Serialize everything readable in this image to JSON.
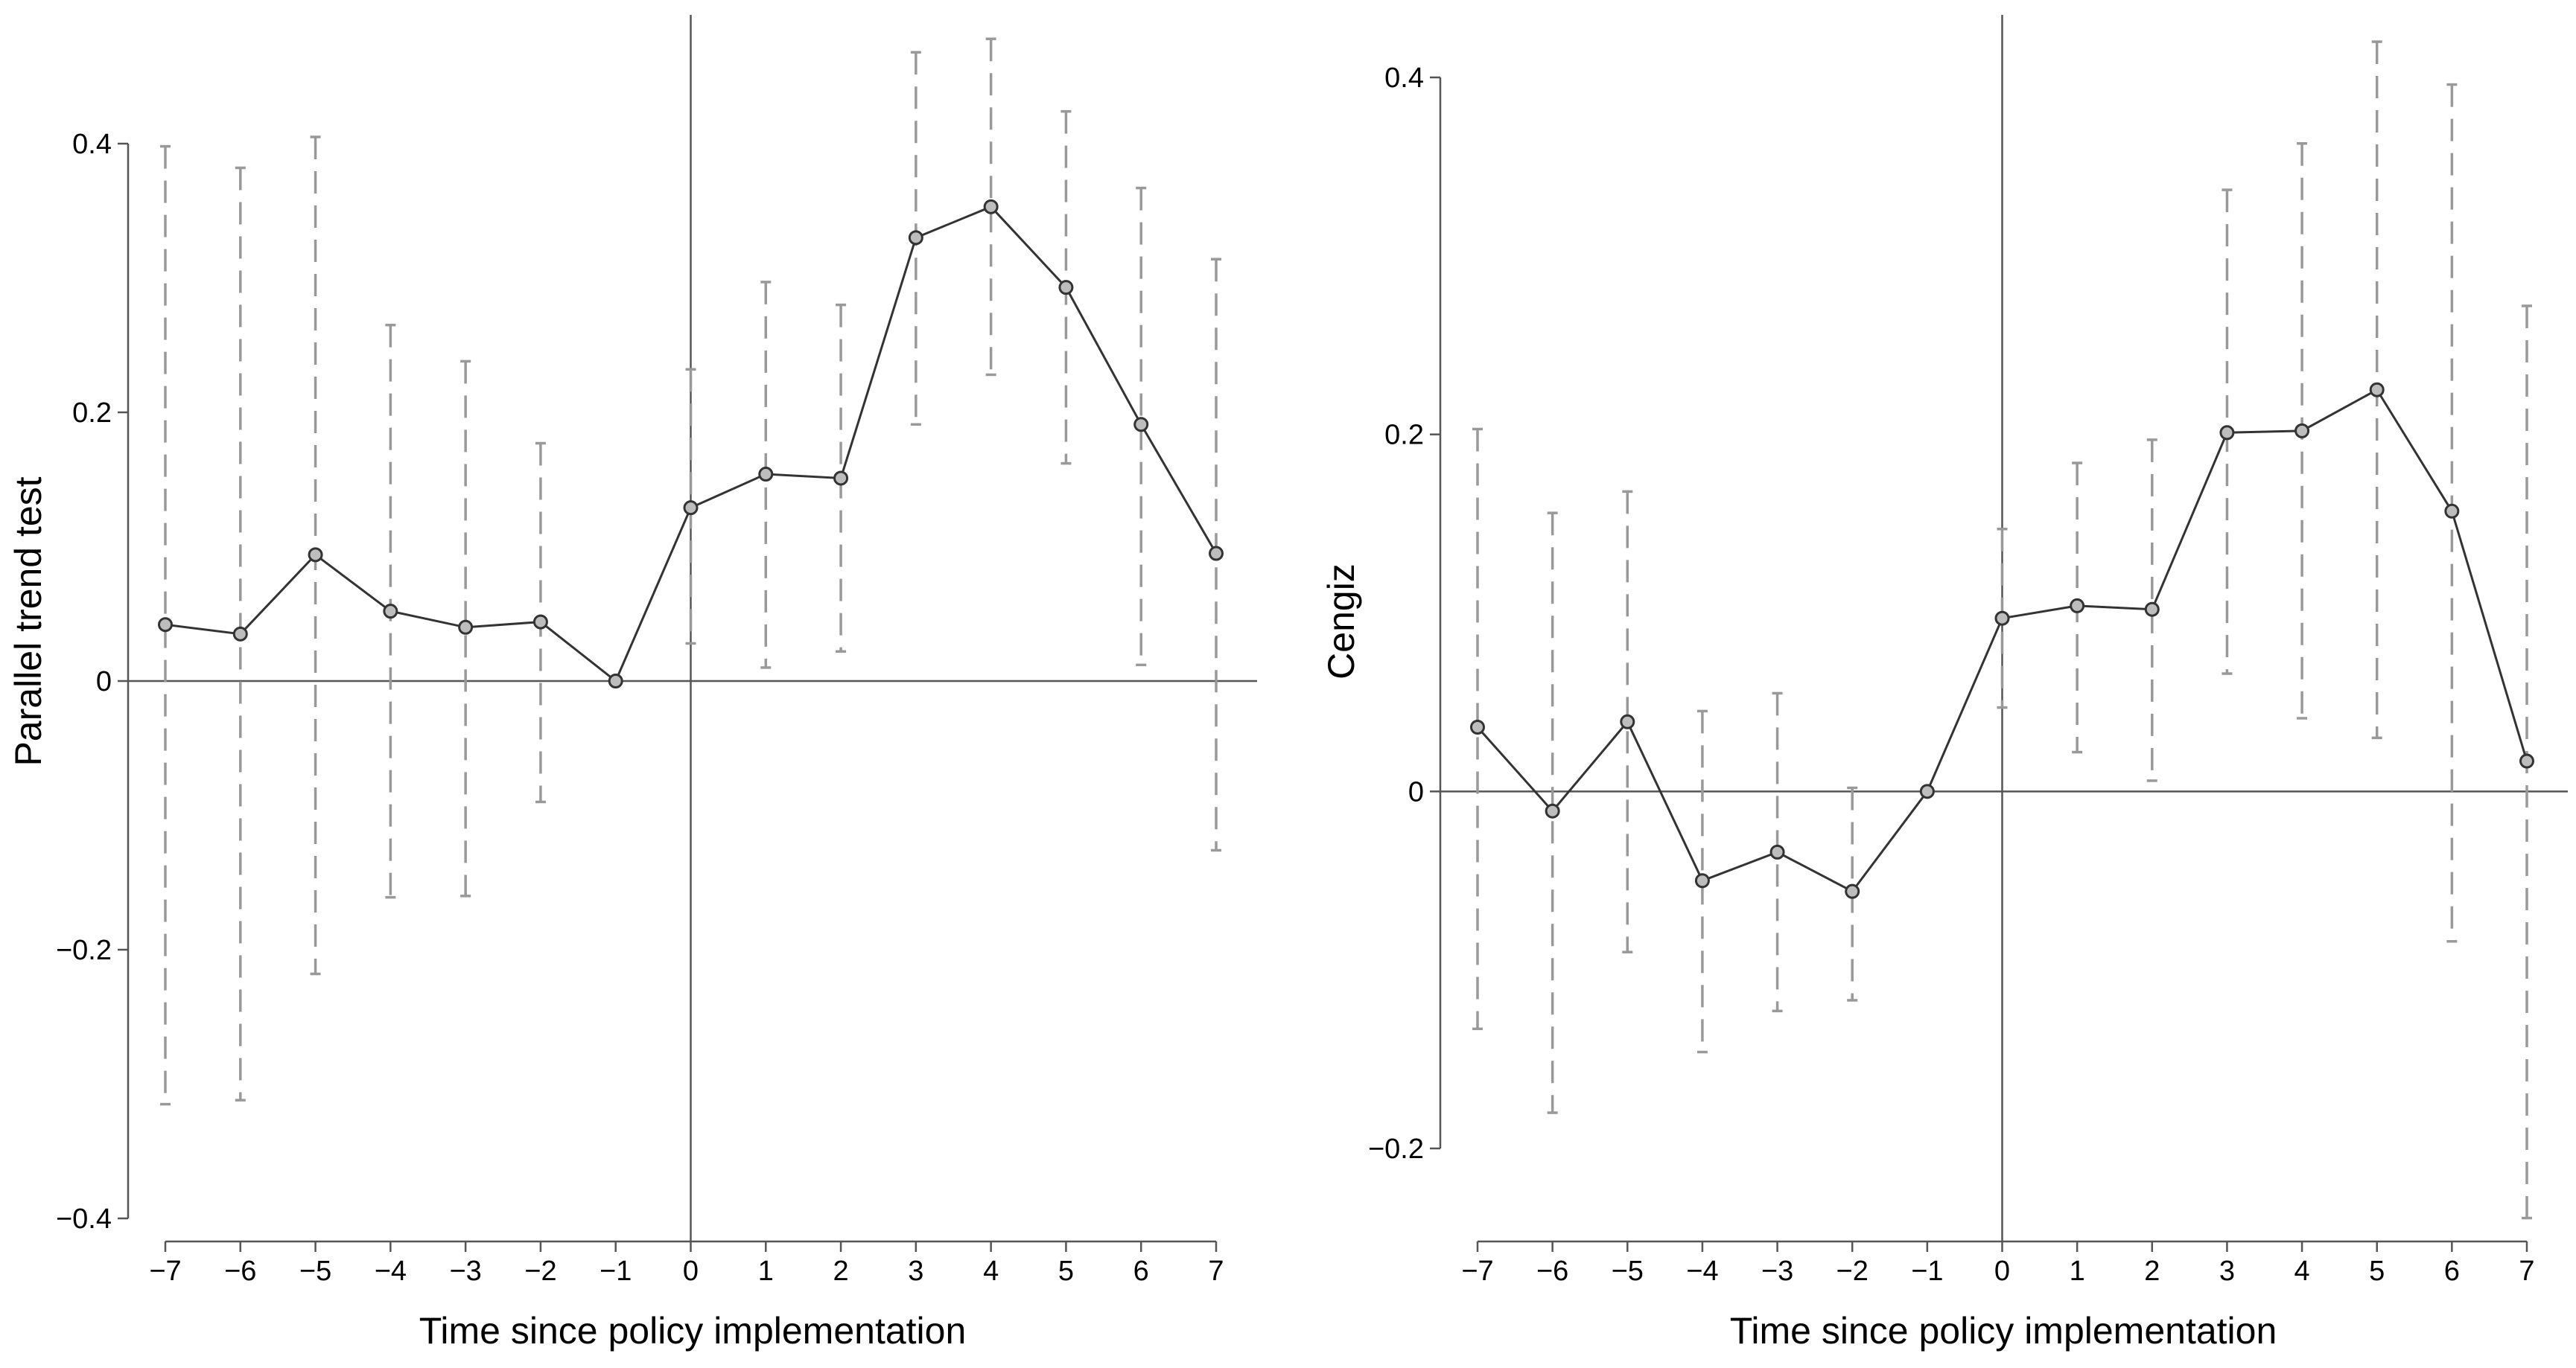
{
  "chart_data": [
    {
      "type": "line",
      "title": "",
      "xlabel": "Time since policy implementation",
      "ylabel": "Parallel trend test",
      "x": [
        -7,
        -6,
        -5,
        -4,
        -3,
        -2,
        -1,
        0,
        1,
        2,
        3,
        4,
        5,
        6,
        7
      ],
      "x_tick_labels": [
        "−7",
        "−6",
        "−5",
        "−4",
        "−3",
        "−2",
        "−1",
        "0",
        "1",
        "2",
        "3",
        "4",
        "5",
        "6",
        "7"
      ],
      "y_ticks": [
        -0.4,
        -0.2,
        0,
        0.2,
        0.4
      ],
      "y_tick_labels": [
        "−0.4",
        "−0.2",
        "0",
        "0.2",
        "0.4"
      ],
      "xlim": [
        -7,
        7
      ],
      "ylim": [
        -0.42,
        0.49
      ],
      "reference_lines": {
        "x": 0,
        "y": 0
      },
      "grid": false,
      "series": [
        {
          "values": [
            0.042,
            0.035,
            0.094,
            0.052,
            0.04,
            0.044,
            0.0,
            0.129,
            0.154,
            0.151,
            0.33,
            0.353,
            0.293,
            0.191,
            0.095
          ],
          "ci_lower": [
            -0.315,
            -0.312,
            -0.218,
            -0.161,
            -0.16,
            -0.09,
            null,
            0.028,
            0.01,
            0.022,
            0.191,
            0.228,
            0.162,
            0.012,
            -0.126
          ],
          "ci_upper": [
            0.398,
            0.382,
            0.405,
            0.265,
            0.238,
            0.177,
            null,
            0.232,
            0.297,
            0.28,
            0.468,
            0.478,
            0.424,
            0.367,
            0.314
          ]
        }
      ],
      "colors": {
        "line": "#333333",
        "ci": "#999999",
        "axis": "#555555"
      }
    },
    {
      "type": "line",
      "title": "",
      "xlabel": "Time since policy implementation",
      "ylabel": "Cengiz",
      "x": [
        -7,
        -6,
        -5,
        -4,
        -3,
        -2,
        -1,
        0,
        1,
        2,
        3,
        4,
        5,
        6,
        7
      ],
      "x_tick_labels": [
        "−7",
        "−6",
        "−5",
        "−4",
        "−3",
        "−2",
        "−1",
        "0",
        "1",
        "2",
        "3",
        "4",
        "5",
        "6",
        "7"
      ],
      "y_ticks": [
        -0.2,
        0,
        0.2,
        0.4
      ],
      "y_tick_labels": [
        "−0.2",
        "0",
        "0.2",
        "0.4"
      ],
      "xlim": [
        -7,
        7
      ],
      "ylim": [
        -0.255,
        0.435
      ],
      "reference_lines": {
        "x": 0,
        "y": 0
      },
      "grid": false,
      "series": [
        {
          "values": [
            0.036,
            -0.011,
            0.039,
            -0.05,
            -0.034,
            -0.056,
            0.0,
            0.097,
            0.104,
            0.102,
            0.201,
            0.202,
            0.225,
            0.157,
            0.017
          ],
          "ci_lower": [
            -0.133,
            -0.18,
            -0.09,
            -0.146,
            -0.123,
            -0.117,
            null,
            0.047,
            0.022,
            0.006,
            0.066,
            0.041,
            0.03,
            -0.084,
            -0.239
          ],
          "ci_upper": [
            0.203,
            0.156,
            0.168,
            0.045,
            0.055,
            0.002,
            null,
            0.147,
            0.184,
            0.197,
            0.337,
            0.363,
            0.42,
            0.396,
            0.272
          ]
        }
      ],
      "colors": {
        "line": "#333333",
        "ci": "#999999",
        "axis": "#555555"
      }
    }
  ]
}
